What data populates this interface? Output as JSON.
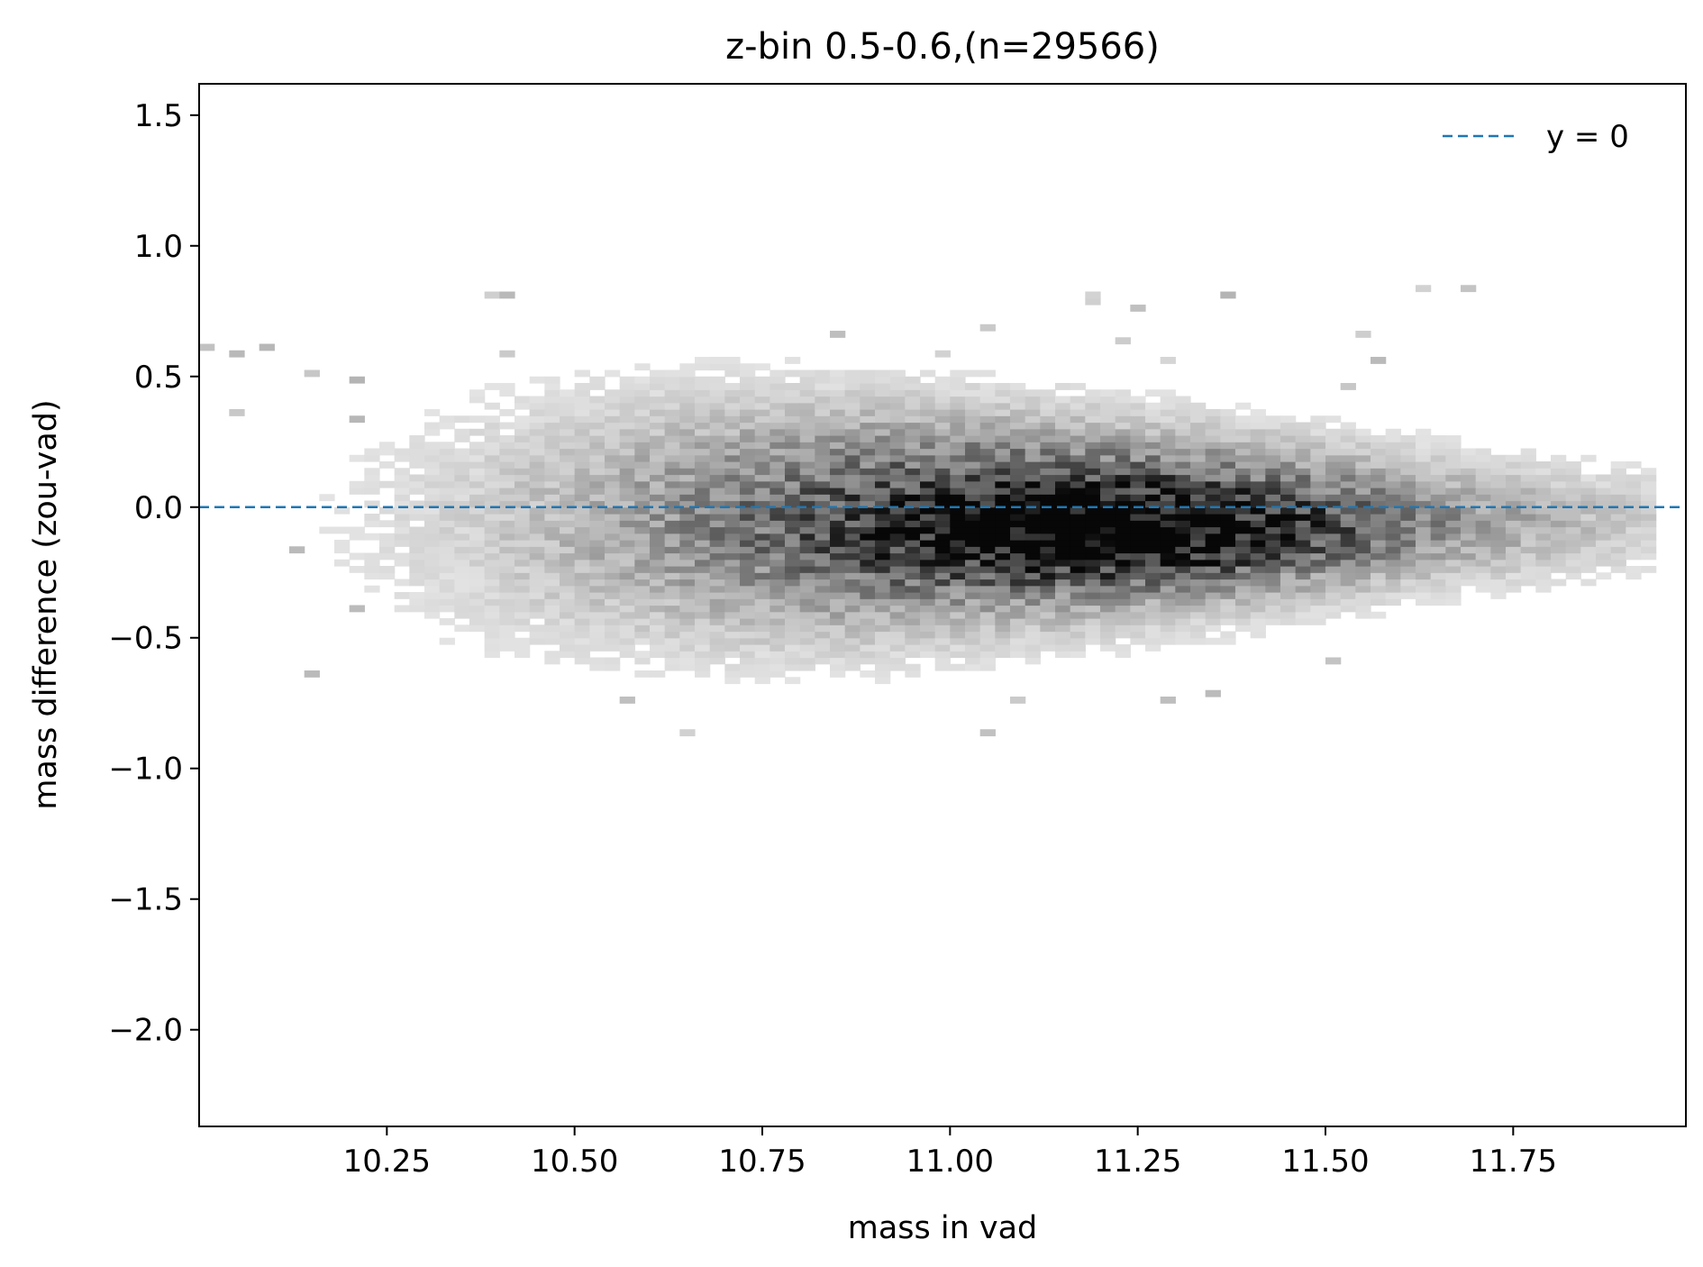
{
  "chart_data": {
    "type": "heatmap",
    "title": "z-bin 0.5-0.6,(n=29566)",
    "xlabel": "mass in vad",
    "ylabel": "mass difference (zou-vad)",
    "xlim": [
      10.0,
      11.98
    ],
    "ylim": [
      -2.37,
      1.62
    ],
    "xticks": [
      "10.25",
      "10.50",
      "10.75",
      "11.00",
      "11.25",
      "11.50",
      "11.75"
    ],
    "xtick_values": [
      10.25,
      10.5,
      10.75,
      11.0,
      11.25,
      11.5,
      11.75
    ],
    "yticks": [
      "1.5",
      "1.0",
      "0.5",
      "0.0",
      "−0.5",
      "−1.0",
      "−1.5",
      "−2.0"
    ],
    "ytick_values": [
      1.5,
      1.0,
      0.5,
      0.0,
      -0.5,
      -1.0,
      -1.5,
      -2.0
    ],
    "colormap": "greys",
    "n": 29566,
    "density_model": {
      "description_peak": "dense core around mass 11.2, difference -0.1",
      "bin_width_x": 0.02,
      "bin_width_y": 0.025
    },
    "reference_line": {
      "label": "y = 0",
      "y": 0.0,
      "style": "dashed",
      "color": "#1f77b4"
    },
    "legend": {
      "position": "top-right",
      "entries": [
        {
          "label": "y = 0",
          "color": "#1f77b4",
          "style": "dashed"
        }
      ]
    },
    "grid": false
  }
}
